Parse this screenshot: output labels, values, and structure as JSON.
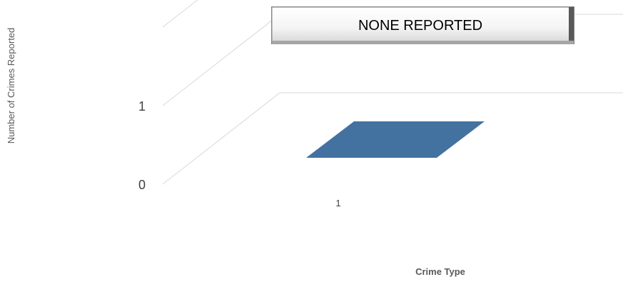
{
  "chart_data": {
    "type": "bar",
    "categories": [
      "1"
    ],
    "series": [
      {
        "values": [
          0
        ]
      }
    ],
    "title": "",
    "xlabel": "Crime Type",
    "ylabel": "Number of Crimes Reported",
    "ylim": [
      0,
      1
    ],
    "yticks": [
      "0",
      "1"
    ],
    "grid": true,
    "legend": "none",
    "colors": {
      "bar": "#4472a0",
      "grid": "#d9d9d9"
    },
    "annotation": "NONE REPORTED"
  }
}
